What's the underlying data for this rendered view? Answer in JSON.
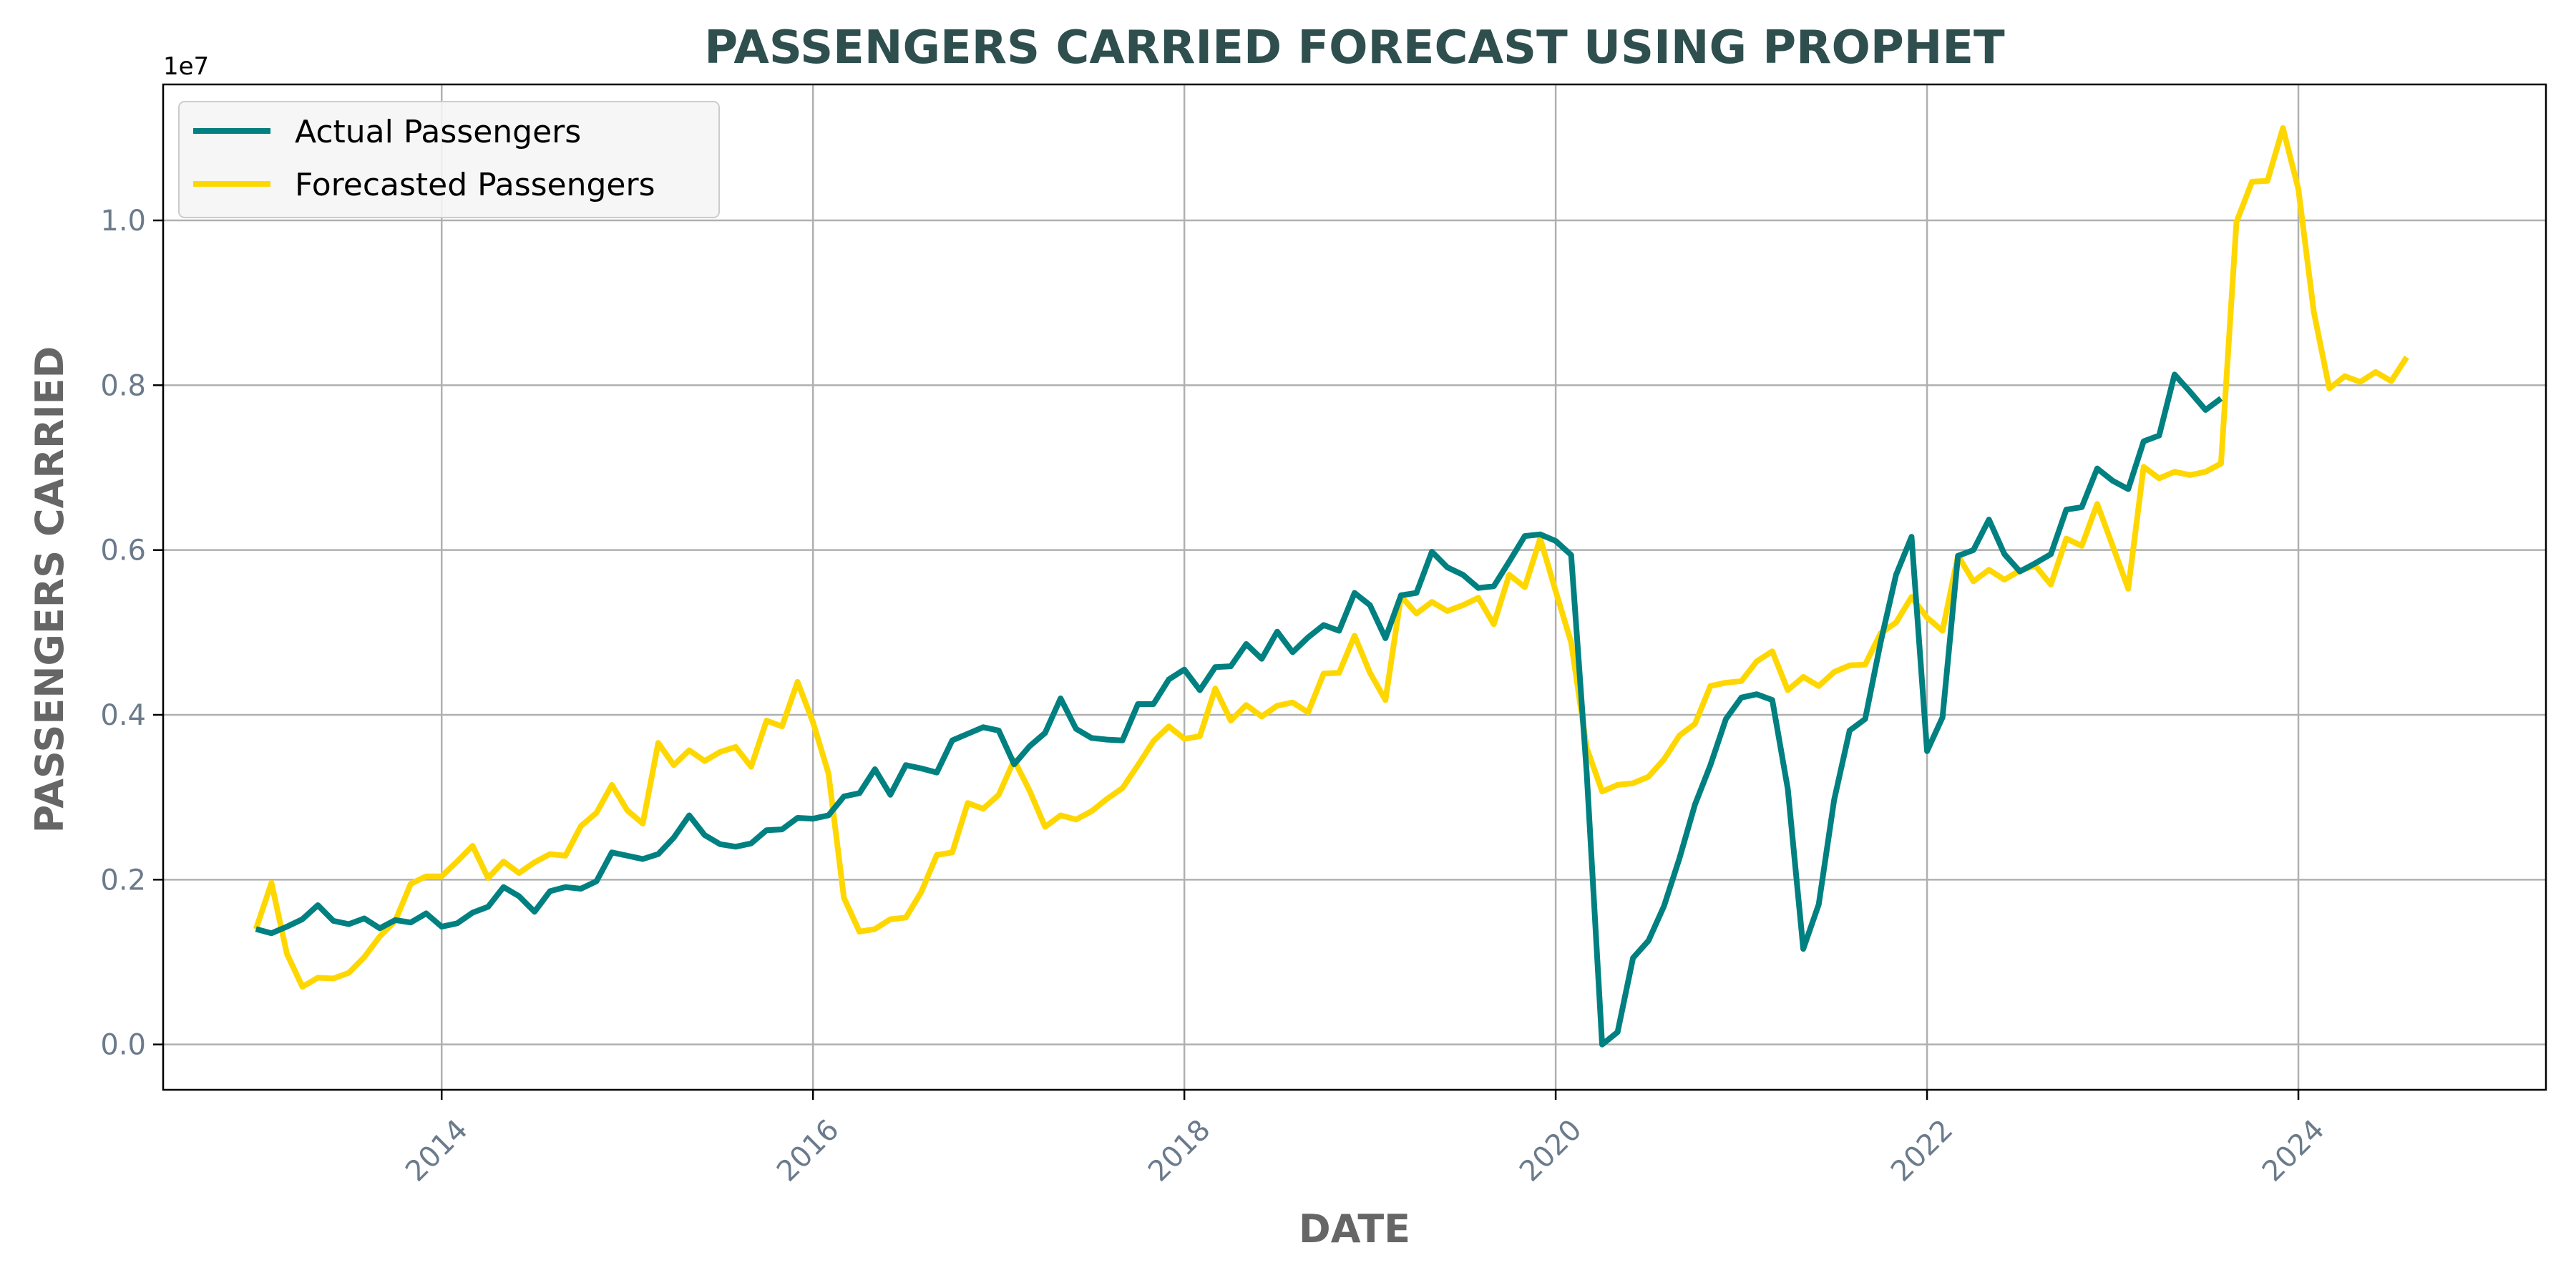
{
  "chart_data": {
    "type": "line",
    "title": "PASSENGERS CARRIED FORECAST USING PROPHET",
    "xlabel": "DATE",
    "ylabel": "PASSENGERS CARRIED",
    "y_offset_label": "1e7",
    "y_scale_factor": 10000000,
    "xlim": [
      "2012-07-01",
      "2025-05-01"
    ],
    "ylim": [
      -0.055,
      1.165
    ],
    "x_ticks": [
      "2014",
      "2016",
      "2018",
      "2020",
      "2022",
      "2024"
    ],
    "y_ticks": [
      "0.0",
      "0.2",
      "0.4",
      "0.6",
      "0.8",
      "1.0"
    ],
    "grid": true,
    "legend_position": "top-left",
    "colors": {
      "actual": "#008080",
      "forecast": "#ffd700",
      "title": "#2f4f4f",
      "axis_title": "#666666",
      "tick": "#6b7b8c"
    },
    "series": [
      {
        "name": "Actual Passengers",
        "start": "2013-01",
        "values": [
          0.14,
          0.135,
          0.143,
          0.152,
          0.169,
          0.15,
          0.146,
          0.153,
          0.141,
          0.151,
          0.148,
          0.159,
          0.143,
          0.147,
          0.16,
          0.167,
          0.191,
          0.18,
          0.161,
          0.186,
          0.191,
          0.189,
          0.198,
          0.233,
          0.229,
          0.225,
          0.231,
          0.251,
          0.278,
          0.254,
          0.243,
          0.24,
          0.244,
          0.26,
          0.261,
          0.275,
          0.274,
          0.278,
          0.301,
          0.305,
          0.334,
          0.303,
          0.339,
          0.335,
          0.33,
          0.369,
          0.377,
          0.385,
          0.381,
          0.34,
          0.362,
          0.378,
          0.42,
          0.383,
          0.372,
          0.37,
          0.369,
          0.413,
          0.413,
          0.443,
          0.455,
          0.43,
          0.458,
          0.459,
          0.486,
          0.468,
          0.501,
          0.476,
          0.494,
          0.509,
          0.502,
          0.548,
          0.533,
          0.493,
          0.545,
          0.548,
          0.598,
          0.579,
          0.57,
          0.554,
          0.556,
          0.586,
          0.617,
          0.619,
          0.611,
          0.594,
          0.33,
          0.0,
          0.015,
          0.105,
          0.126,
          0.168,
          0.226,
          0.291,
          0.339,
          0.395,
          0.421,
          0.425,
          0.418,
          0.31,
          0.116,
          0.17,
          0.297,
          0.381,
          0.395,
          0.488,
          0.57,
          0.616,
          0.356,
          0.397,
          0.593,
          0.6,
          0.637,
          0.595,
          0.574,
          0.584,
          0.595,
          0.649,
          0.652,
          0.699,
          0.684,
          0.674,
          0.732,
          0.739,
          0.813,
          0.792,
          0.77,
          0.784
        ]
      },
      {
        "name": "Forecasted Passengers",
        "start": "2013-01",
        "values": [
          0.14,
          0.196,
          0.11,
          0.07,
          0.081,
          0.08,
          0.087,
          0.106,
          0.131,
          0.15,
          0.195,
          0.204,
          0.204,
          0.222,
          0.241,
          0.202,
          0.222,
          0.208,
          0.221,
          0.231,
          0.229,
          0.265,
          0.281,
          0.315,
          0.284,
          0.268,
          0.366,
          0.339,
          0.357,
          0.344,
          0.355,
          0.361,
          0.337,
          0.393,
          0.386,
          0.44,
          0.391,
          0.329,
          0.178,
          0.137,
          0.14,
          0.152,
          0.154,
          0.185,
          0.23,
          0.233,
          0.293,
          0.286,
          0.303,
          0.345,
          0.308,
          0.264,
          0.278,
          0.273,
          0.283,
          0.298,
          0.311,
          0.339,
          0.368,
          0.386,
          0.371,
          0.374,
          0.432,
          0.393,
          0.412,
          0.398,
          0.411,
          0.415,
          0.403,
          0.45,
          0.451,
          0.496,
          0.451,
          0.418,
          0.544,
          0.523,
          0.537,
          0.526,
          0.533,
          0.542,
          0.51,
          0.57,
          0.555,
          0.614,
          0.55,
          0.488,
          0.36,
          0.307,
          0.315,
          0.317,
          0.325,
          0.346,
          0.375,
          0.389,
          0.435,
          0.439,
          0.441,
          0.465,
          0.477,
          0.43,
          0.446,
          0.435,
          0.452,
          0.46,
          0.461,
          0.499,
          0.512,
          0.543,
          0.518,
          0.502,
          0.593,
          0.562,
          0.576,
          0.564,
          0.575,
          0.581,
          0.558,
          0.614,
          0.605,
          0.656,
          0.605,
          0.553,
          0.701,
          0.687,
          0.695,
          0.691,
          0.695,
          0.705,
          0.998,
          1.047,
          1.048,
          1.112,
          1.038,
          0.889,
          0.796,
          0.811,
          0.804,
          0.816,
          0.805,
          0.834
        ]
      }
    ]
  }
}
